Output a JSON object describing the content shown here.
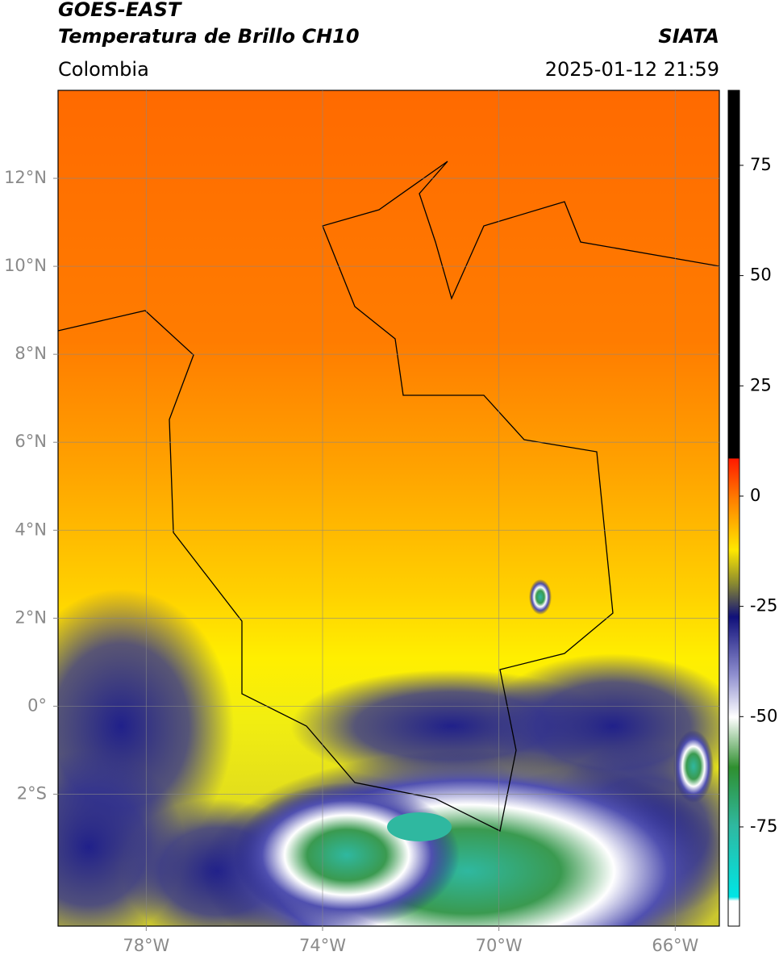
{
  "header": {
    "title": "GOES-EAST",
    "subtitle": "Temperatura de Brillo CH10",
    "region": "Colombia",
    "source": "SIATA",
    "timestamp": "2025-01-12 21:59"
  },
  "map": {
    "xlim": [
      -80,
      -65
    ],
    "ylim": [
      -5,
      14
    ],
    "xticks": [
      {
        "value": -78,
        "label": "78°W"
      },
      {
        "value": -74,
        "label": "74°W"
      },
      {
        "value": -70,
        "label": "70°W"
      },
      {
        "value": -66,
        "label": "66°W"
      }
    ],
    "yticks": [
      {
        "value": 12,
        "label": "12°N"
      },
      {
        "value": 10,
        "label": "10°N"
      },
      {
        "value": 8,
        "label": "8°N"
      },
      {
        "value": 6,
        "label": "6°N"
      },
      {
        "value": 4,
        "label": "4°N"
      },
      {
        "value": 2,
        "label": "2°N"
      },
      {
        "value": 0,
        "label": "0°"
      },
      {
        "value": -2,
        "label": "2°S"
      }
    ],
    "grid": true
  },
  "colorbar": {
    "lim": [
      -97.5,
      92
    ],
    "ticks": [
      75,
      50,
      25,
      0,
      -25,
      -50,
      -75
    ]
  }
}
